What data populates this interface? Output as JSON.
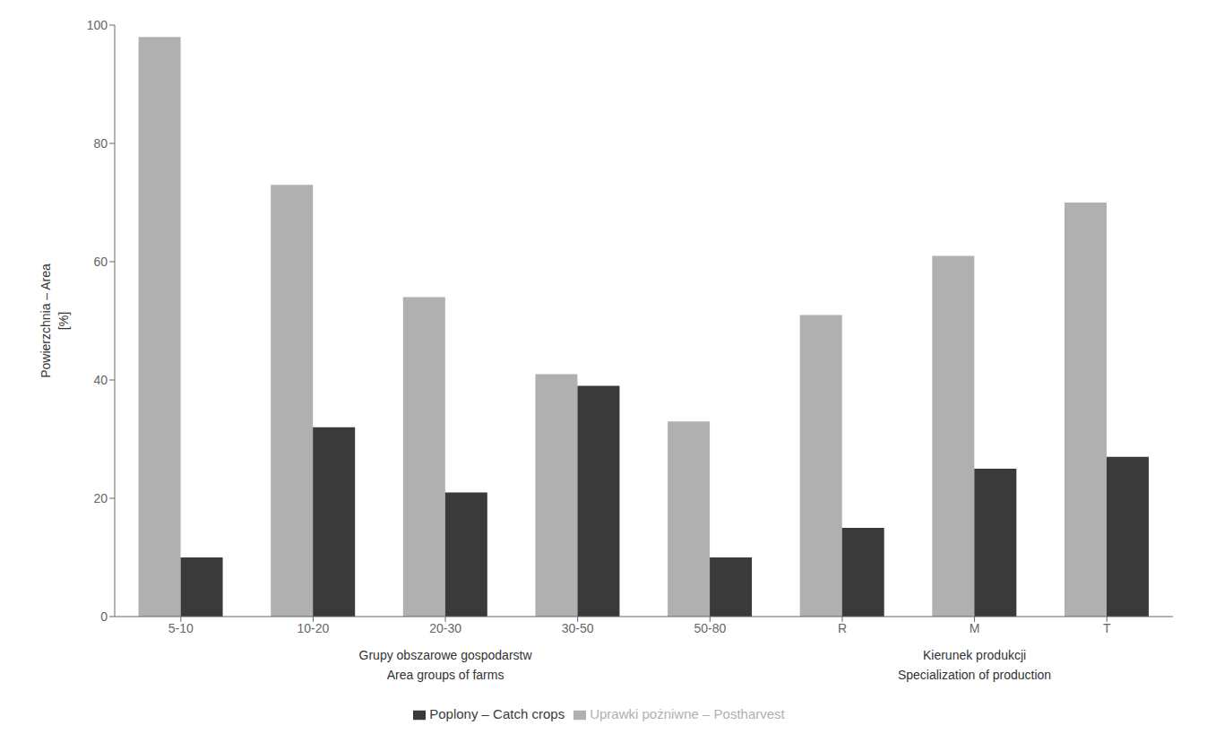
{
  "chart_data": {
    "type": "bar",
    "categories": [
      "5-10",
      "10-20",
      "20-30",
      "30-50",
      "50-80",
      "R",
      "M",
      "T"
    ],
    "series": [
      {
        "name": "Uprawki pożniwne – Postharvest",
        "color": "#b0b0b0",
        "values": [
          98,
          73,
          54,
          41,
          33,
          51,
          61,
          70
        ]
      },
      {
        "name": "Poplony – Catch crops",
        "color": "#3a3a3a",
        "values": [
          10,
          32,
          21,
          39,
          10,
          15,
          25,
          27
        ]
      }
    ],
    "ylabel": "Powierzchnia – Area\n[%]",
    "ylim": [
      0,
      100
    ],
    "yticks": [
      0,
      20,
      40,
      60,
      80,
      100
    ],
    "grid": false,
    "legend": "bottom",
    "x_groups": [
      {
        "lines": [
          "Grupy obszarowe gospodarstw",
          "Area groups of farms"
        ],
        "categories": [
          "5-10",
          "10-20",
          "20-30",
          "30-50",
          "50-80"
        ]
      },
      {
        "lines": [
          "Kierunek produkcji",
          "Specialization of production"
        ],
        "categories": [
          "R",
          "M",
          "T"
        ]
      }
    ]
  }
}
